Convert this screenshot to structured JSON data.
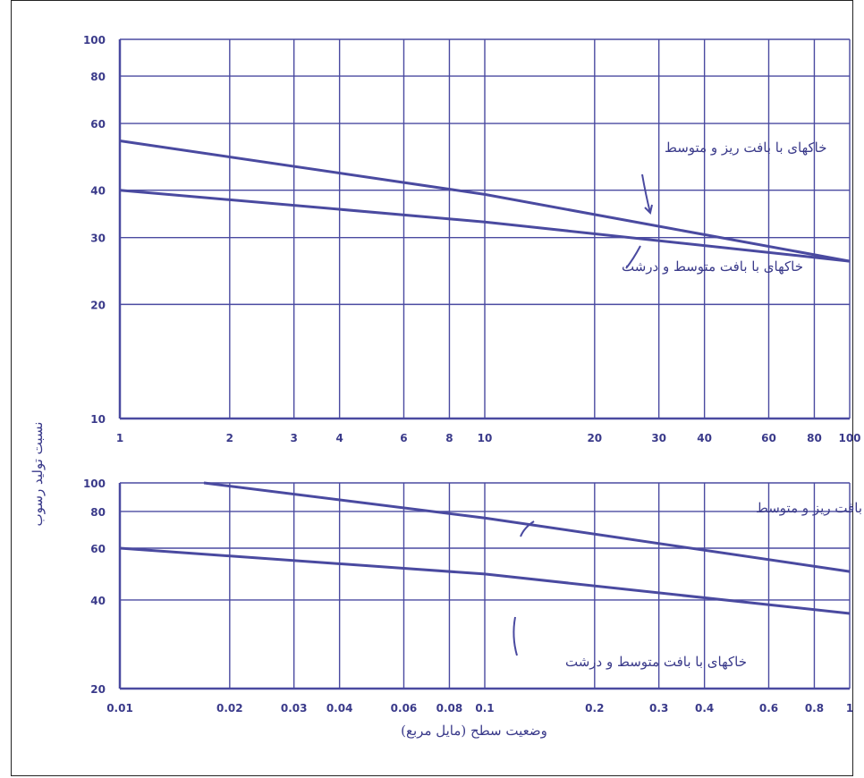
{
  "chart_data": [
    {
      "type": "line",
      "x_scale": "log",
      "y_scale": "log",
      "xlim": [
        1,
        100
      ],
      "ylim": [
        10,
        100
      ],
      "grid": true,
      "x_ticks": [
        "1",
        "2",
        "3",
        "4",
        "6",
        "8",
        "10",
        "20",
        "30",
        "40",
        "60",
        "80",
        "100"
      ],
      "y_ticks": [
        "10",
        "20",
        "30",
        "40",
        "60",
        "80",
        "100"
      ],
      "series": [
        {
          "name": "خاکهای با بافت ریز و متوسط",
          "x": [
            1,
            10,
            100
          ],
          "y": [
            54,
            39,
            26
          ]
        },
        {
          "name": "خاکهای با بافت متوسط و درشت",
          "x": [
            1,
            10,
            100
          ],
          "y": [
            40,
            33,
            26
          ]
        }
      ]
    },
    {
      "type": "line",
      "x_scale": "log",
      "y_scale": "log",
      "xlim": [
        0.01,
        1
      ],
      "ylim": [
        20,
        100
      ],
      "grid": true,
      "x_ticks": [
        "0.01",
        "0.02",
        "0.03",
        "0.04",
        "0.06",
        "0.08",
        "0.1",
        "0.2",
        "0.3",
        "0.4",
        "0.6",
        "0.8",
        "1"
      ],
      "y_ticks": [
        "20",
        "40",
        "60",
        "80",
        "100"
      ],
      "series": [
        {
          "name": "خاکهای با بافت ریز و متوسط",
          "x": [
            0.017,
            0.1,
            1
          ],
          "y": [
            100,
            76,
            50
          ]
        },
        {
          "name": "خاکهای با بافت متوسط و درشت",
          "x": [
            0.01,
            0.1,
            1
          ],
          "y": [
            60,
            49,
            36
          ]
        }
      ]
    }
  ],
  "labels": {
    "y_axis": "نسبت تولید رسوب",
    "x_axis": "وضعیت سطح (مایل مربع)",
    "top_fine": "خاکهای با بافت ریز و متوسط",
    "top_coarse": "خاکهای با بافت متوسط و درشت",
    "bottom_fine": "خاکهای با بافت ریز و متوسط",
    "bottom_coarse": "خاکهای با بافت متوسط و درشت"
  },
  "colors": {
    "ink": "#3a3a8a",
    "line": "#4a4aa0"
  }
}
